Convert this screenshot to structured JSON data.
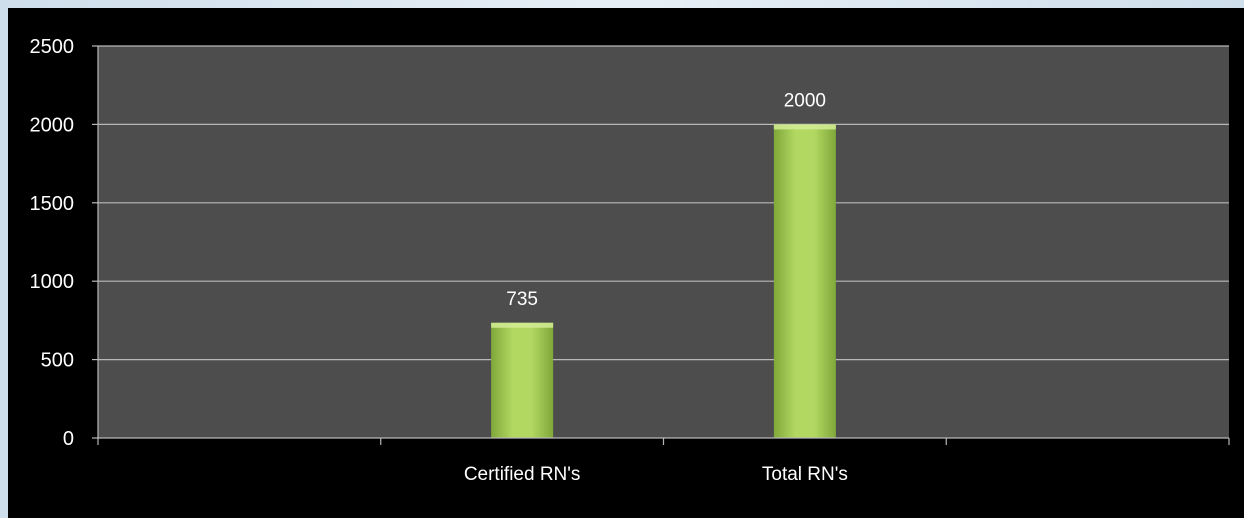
{
  "chart_data": {
    "type": "bar",
    "categories": [
      "",
      "Certified RN's",
      "Total RN's",
      ""
    ],
    "values": [
      null,
      735,
      2000,
      null
    ],
    "data_labels": [
      "",
      "735",
      "2000",
      ""
    ],
    "title": "",
    "xlabel": "",
    "ylabel": "",
    "ylim": [
      0,
      2500
    ],
    "yticks": [
      0,
      500,
      1000,
      1500,
      2000,
      2500
    ],
    "ytick_labels": [
      "0",
      "500",
      "1000",
      "1500",
      "2000",
      "2500"
    ],
    "grid": true,
    "legend": "none",
    "colors": {
      "plot_background": "#4d4d4d",
      "outer_background": "#000000",
      "bar_fill": "#9fcb4a",
      "gridline": "#b8b8b8",
      "text": "#ffffff"
    }
  }
}
